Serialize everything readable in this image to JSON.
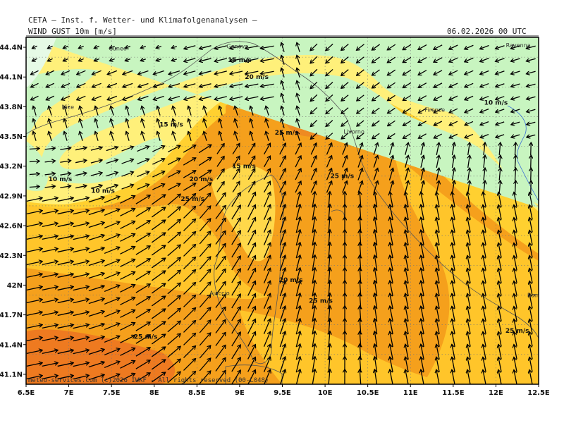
{
  "header": {
    "institution": "CETA – Inst. f. Wetter- und Klimafolgenanalysen –",
    "parameter": "WIND GUST 10m [m/s]",
    "datetime": "06.02.2026 00 UTC"
  },
  "footer": "meteo-services.com (c)2026 IWKF - All rights reserved (00-L048)",
  "axes": {
    "lon_ticks": [
      "6.5E",
      "7E",
      "7.5E",
      "8E",
      "8.5E",
      "9E",
      "9.5E",
      "10E",
      "10.5E",
      "11E",
      "11.5E",
      "12E",
      "12.5E"
    ],
    "lat_ticks": [
      "41.1N",
      "41.4N",
      "41.7N",
      "42N",
      "42.3N",
      "42.6N",
      "42.9N",
      "43.2N",
      "43.5N",
      "43.8N",
      "44.1N",
      "44.4N"
    ],
    "lon_range": [
      6.5,
      12.5
    ],
    "lat_range": [
      41.0,
      44.5
    ]
  },
  "cities": [
    {
      "name": "Genova",
      "lon": 8.93,
      "lat": 44.41
    },
    {
      "name": "Cuneo",
      "lon": 7.55,
      "lat": 44.39
    },
    {
      "name": "Ravenna",
      "lon": 12.2,
      "lat": 44.42
    },
    {
      "name": "Nice",
      "lon": 7.0,
      "lat": 43.8
    },
    {
      "name": "Firenze",
      "lon": 11.25,
      "lat": 43.77
    },
    {
      "name": "Livorno",
      "lon": 10.3,
      "lat": 43.55
    },
    {
      "name": "Ajaccio",
      "lon": 8.73,
      "lat": 41.92
    },
    {
      "name": "Rome",
      "lon": 12.45,
      "lat": 41.9
    }
  ],
  "isoline_labels": [
    {
      "text": "15 m/s",
      "lon": 9.0,
      "lat": 44.25
    },
    {
      "text": "20 m/s",
      "lon": 9.2,
      "lat": 44.08
    },
    {
      "text": "10 m/s",
      "lon": 12.0,
      "lat": 43.82
    },
    {
      "text": "15 m/s",
      "lon": 8.2,
      "lat": 43.6
    },
    {
      "text": "25 m/s",
      "lon": 9.55,
      "lat": 43.52
    },
    {
      "text": "15 m/s",
      "lon": 9.05,
      "lat": 43.18
    },
    {
      "text": "25 m/s",
      "lon": 10.2,
      "lat": 43.08
    },
    {
      "text": "10 m/s",
      "lon": 6.9,
      "lat": 43.05
    },
    {
      "text": "10 m/s",
      "lon": 7.4,
      "lat": 42.93
    },
    {
      "text": "20 m/s",
      "lon": 8.55,
      "lat": 43.05
    },
    {
      "text": "25 m/s",
      "lon": 8.45,
      "lat": 42.85
    },
    {
      "text": "20 m/s",
      "lon": 9.6,
      "lat": 42.03
    },
    {
      "text": "25 m/s",
      "lon": 9.95,
      "lat": 41.82
    },
    {
      "text": "25 m/s",
      "lon": 7.9,
      "lat": 41.46
    },
    {
      "text": "25 m/s",
      "lon": 12.25,
      "lat": 41.52
    }
  ],
  "legend_colors": {
    "calm": "#e6fae6",
    "10-15": "#c8f5c0",
    "15-20": "#fff07a",
    "20-25": "#ffd030",
    "25-30": "#f5a01c",
    "30+": "#ee7a20"
  }
}
